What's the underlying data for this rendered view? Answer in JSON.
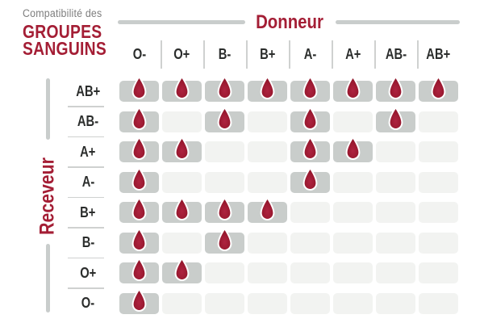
{
  "title": {
    "eyebrow": "Compatibilité des",
    "line1": "GROUPES",
    "line2": "SANGUINS"
  },
  "donor_axis": {
    "label": "Donneur"
  },
  "receiver_axis": {
    "label": "Receveur"
  },
  "chart_data": {
    "type": "heatmap",
    "title": "Compatibilité des GROUPES SANGUINS",
    "x_label": "Donneur",
    "y_label": "Receveur",
    "columns": [
      "O-",
      "O+",
      "B-",
      "B+",
      "A-",
      "A+",
      "AB-",
      "AB+"
    ],
    "rows": [
      "AB+",
      "AB-",
      "A+",
      "A-",
      "B+",
      "B-",
      "O+",
      "O-"
    ],
    "values": [
      [
        1,
        1,
        1,
        1,
        1,
        1,
        1,
        1
      ],
      [
        1,
        0,
        1,
        0,
        1,
        0,
        1,
        0
      ],
      [
        1,
        1,
        0,
        0,
        1,
        1,
        0,
        0
      ],
      [
        1,
        0,
        0,
        0,
        1,
        0,
        0,
        0
      ],
      [
        1,
        1,
        1,
        1,
        0,
        0,
        0,
        0
      ],
      [
        1,
        0,
        1,
        0,
        0,
        0,
        0,
        0
      ],
      [
        1,
        1,
        0,
        0,
        0,
        0,
        0,
        0
      ],
      [
        1,
        0,
        0,
        0,
        0,
        0,
        0,
        0
      ]
    ],
    "marker_icon": "blood-drop-icon",
    "legend_position": "none",
    "grid": false
  },
  "colors": {
    "accent_red": "#A41E35",
    "drop_red_center": "#AE2340",
    "drop_red_mid": "#9E1B33",
    "drop_red_edge": "#8C1226",
    "drop_stroke": "#FFFFFF",
    "cell_compatible": "#C9CDCB",
    "cell_incompatible": "#F2F3F1",
    "axis_line_gray": "#C9CDCC",
    "separator_gray": "#CFD1D0",
    "header_text": "#2B2D2C",
    "eyebrow_gray": "#7E7E7E",
    "background": "#FFFFFF"
  }
}
